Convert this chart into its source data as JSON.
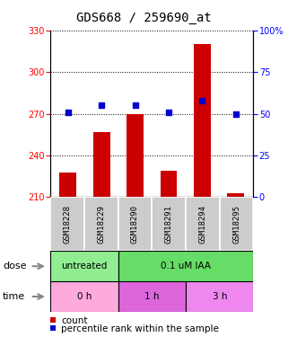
{
  "title": "GDS668 / 259690_at",
  "samples": [
    "GSM18228",
    "GSM18229",
    "GSM18290",
    "GSM18291",
    "GSM18294",
    "GSM18295"
  ],
  "counts": [
    228,
    257,
    270,
    229,
    320,
    213
  ],
  "percentiles": [
    51,
    55,
    55,
    51,
    58,
    50
  ],
  "ylim_left": [
    210,
    330
  ],
  "ylim_right": [
    0,
    100
  ],
  "yticks_left": [
    210,
    240,
    270,
    300,
    330
  ],
  "yticks_right": [
    0,
    25,
    50,
    75,
    100
  ],
  "bar_color": "#cc0000",
  "dot_color": "#0000cc",
  "bar_bottom": 210,
  "dose_labels": [
    {
      "text": "untreated",
      "start": 0,
      "end": 2,
      "color": "#90ee90"
    },
    {
      "text": "0.1 uM IAA",
      "start": 2,
      "end": 6,
      "color": "#66dd66"
    }
  ],
  "time_labels": [
    {
      "text": "0 h",
      "start": 0,
      "end": 2,
      "color": "#ffaadd"
    },
    {
      "text": "1 h",
      "start": 2,
      "end": 4,
      "color": "#dd66dd"
    },
    {
      "text": "3 h",
      "start": 4,
      "end": 6,
      "color": "#ee88ee"
    }
  ],
  "xlabel_dose": "dose",
  "xlabel_time": "time",
  "legend_count": "count",
  "legend_pct": "percentile rank within the sample",
  "title_fontsize": 10,
  "tick_fontsize": 7,
  "label_fontsize": 8,
  "sample_bg": "#cccccc",
  "grid_color": "#000000",
  "grid_linestyle": "dotted"
}
